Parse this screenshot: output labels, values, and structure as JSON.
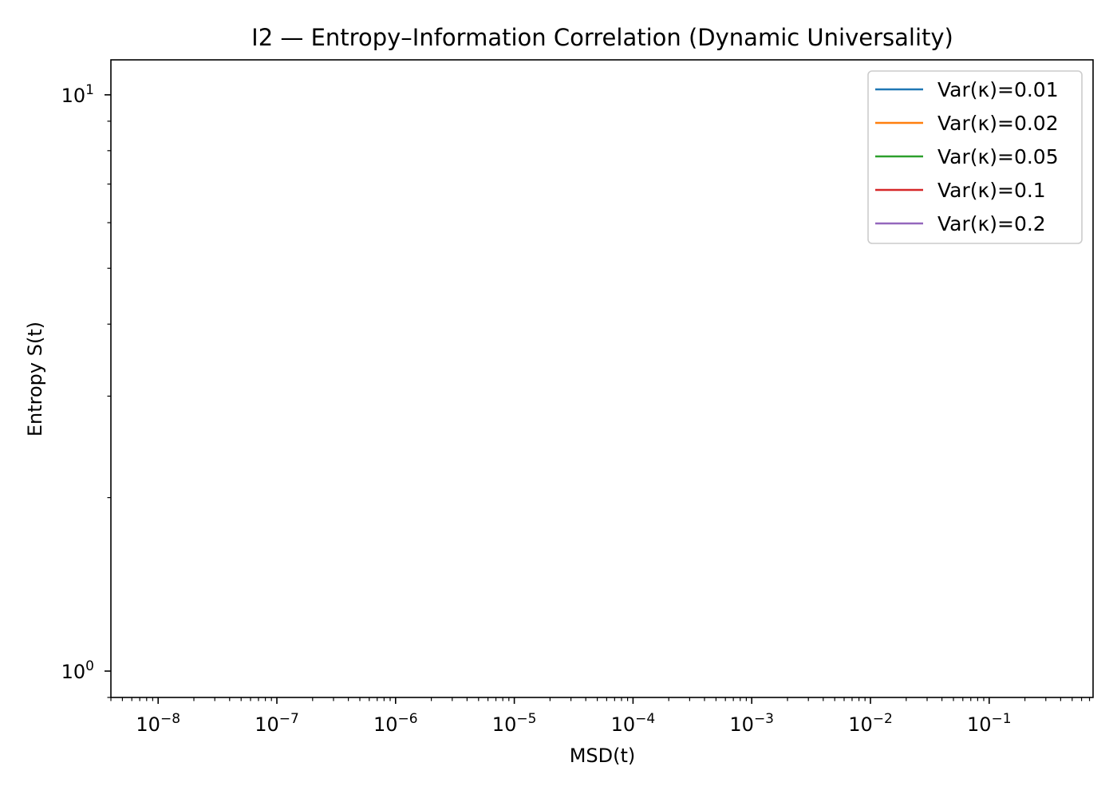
{
  "chart_data": {
    "type": "line",
    "title": "I2 — Entropy–Information Correlation (Dynamic Universality)",
    "xlabel": "MSD(t)",
    "ylabel": "Entropy S(t)",
    "xscale": "log",
    "yscale": "log",
    "xlim": [
      4e-09,
      0.75
    ],
    "ylim": [
      0.9,
      11.5
    ],
    "x_tick_labels": [
      {
        "base": "10",
        "exp": "−8",
        "value": 1e-08
      },
      {
        "base": "10",
        "exp": "−7",
        "value": 1e-07
      },
      {
        "base": "10",
        "exp": "−6",
        "value": 1e-06
      },
      {
        "base": "10",
        "exp": "−5",
        "value": 1e-05
      },
      {
        "base": "10",
        "exp": "−4",
        "value": 0.0001
      },
      {
        "base": "10",
        "exp": "−3",
        "value": 0.001
      },
      {
        "base": "10",
        "exp": "−2",
        "value": 0.01
      },
      {
        "base": "10",
        "exp": "−1",
        "value": 0.1
      }
    ],
    "y_tick_labels": [
      {
        "base": "10",
        "exp": "0",
        "value": 1
      },
      {
        "base": "10",
        "exp": "1",
        "value": 10
      }
    ],
    "grid": false,
    "legend_position": "top-right",
    "series": [
      {
        "name": "Var(κ)=0.01",
        "color": "#1f77b4",
        "x": [],
        "y": []
      },
      {
        "name": "Var(κ)=0.02",
        "color": "#ff7f0e",
        "x": [],
        "y": []
      },
      {
        "name": "Var(κ)=0.05",
        "color": "#2ca02c",
        "x": [],
        "y": []
      },
      {
        "name": "Var(κ)=0.1",
        "color": "#d62728",
        "x": [],
        "y": []
      },
      {
        "name": "Var(κ)=0.2",
        "color": "#9467bd",
        "x": [],
        "y": []
      }
    ]
  }
}
